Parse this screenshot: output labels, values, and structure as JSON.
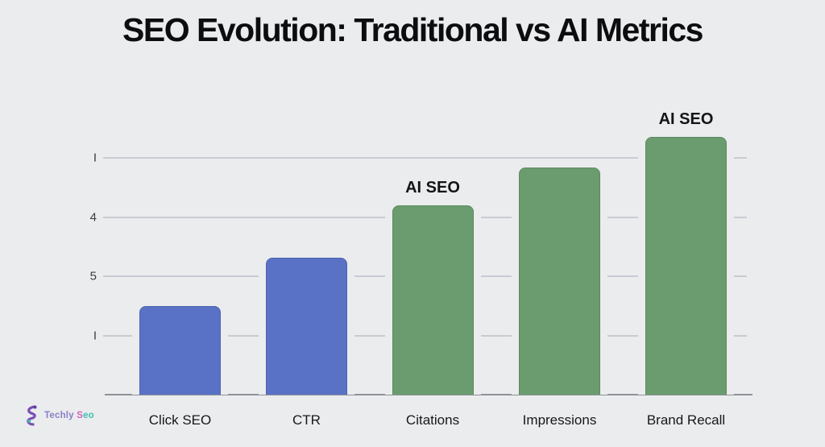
{
  "title": "SEO Evolution: Traditional vs AI Metrics",
  "logo": {
    "brand_primary": "Techly",
    "brand_accent_1": "S",
    "brand_accent_2": "eo"
  },
  "colors": {
    "background": "#EAECEE",
    "traditional_bar": "#5A72C6",
    "ai_bar": "#6A9C6F",
    "gridline": "#C8CBD1",
    "axis_line": "#8F9398",
    "title_text": "#0C0D0F"
  },
  "chart_data": {
    "type": "bar",
    "title": "SEO Evolution: Traditional vs AI Metrics",
    "categories": [
      "Click SEO",
      "CTR",
      "Citations",
      "Impressions",
      "Brand Recall"
    ],
    "values": [
      1.49,
      2.31,
      3.2,
      3.84,
      4.35
    ],
    "series_note": "single series; first two bars styled as Traditional (blue), last three as AI (green)",
    "bar_groups": [
      "traditional",
      "traditional",
      "ai",
      "ai",
      "ai"
    ],
    "annotations": [
      {
        "text": "AI SEO",
        "category_index": 2
      },
      {
        "text": "AI SEO",
        "category_index": 4
      }
    ],
    "y_axis": {
      "tick_labels_top_to_bottom": [
        "I",
        "4",
        "5",
        "I"
      ],
      "tick_values_top_to_bottom": [
        4,
        3,
        2,
        1
      ],
      "note": "tick glyphs appear garbled in source image; reproduced verbatim"
    },
    "ylim": [
      0,
      4.5
    ],
    "grid": true,
    "legend": "none",
    "xlabel": "",
    "ylabel": ""
  }
}
